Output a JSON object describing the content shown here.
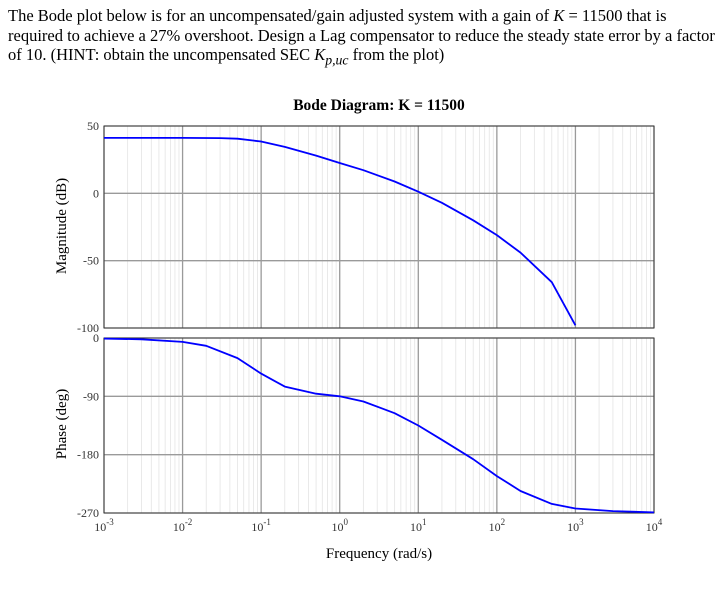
{
  "problem": {
    "text_before_k": "The Bode plot below is for an uncompensated/gain adjusted system with a gain of ",
    "k_symbol": "K",
    "text_after_k": " = 11500 that is required to achieve a 27% overshoot. Design a Lag compensator to reduce the steady state error by a factor of 10. (HINT: obtain the uncompensated SEC ",
    "kp_symbol": "K",
    "kp_subscript": "p,uc",
    "text_end": " from the plot)"
  },
  "chart_data": [
    {
      "type": "line",
      "title": "Bode Diagram: K = 11500",
      "xlabel": "Frequency (rad/s)",
      "ylabel": "Magnitude (dB)",
      "xscale": "log",
      "xlim": [
        0.001,
        10000
      ],
      "ylim": [
        -100,
        50
      ],
      "x_ticks": [
        0.001,
        0.01,
        0.1,
        1,
        10,
        100,
        1000,
        10000
      ],
      "x_tick_labels": [
        {
          "base": "10",
          "exp": "-3"
        },
        {
          "base": "10",
          "exp": "-2"
        },
        {
          "base": "10",
          "exp": "-1"
        },
        {
          "base": "10",
          "exp": "0"
        },
        {
          "base": "10",
          "exp": "1"
        },
        {
          "base": "10",
          "exp": "2"
        },
        {
          "base": "10",
          "exp": "3"
        },
        {
          "base": "10",
          "exp": "4"
        }
      ],
      "y_ticks": [
        50,
        0,
        -50,
        -100
      ],
      "y_tick_labels": [
        "50",
        "0",
        "-50",
        "-100"
      ],
      "grid": true,
      "color": "#0000ff",
      "series": [
        {
          "x": [
            0.001,
            0.01,
            0.03,
            0.05,
            0.1,
            0.2,
            0.5,
            1,
            2,
            5,
            10,
            20,
            50,
            100,
            200,
            500,
            1000
          ],
          "y": [
            41.2,
            41.2,
            41.0,
            40.6,
            38.5,
            34.5,
            28.0,
            22.5,
            17.2,
            8.8,
            1.2,
            -7.0,
            -20.0,
            -31.0,
            -44.0,
            -66.0,
            -98.0
          ]
        }
      ]
    },
    {
      "type": "line",
      "title": "",
      "xlabel": "Frequency (rad/s)",
      "ylabel": "Phase (deg)",
      "xscale": "log",
      "xlim": [
        0.001,
        10000
      ],
      "ylim": [
        -270,
        0
      ],
      "x_ticks": [
        0.001,
        0.01,
        0.1,
        1,
        10,
        100,
        1000,
        10000
      ],
      "y_ticks": [
        0,
        -90,
        -180,
        -270
      ],
      "y_tick_labels": [
        "0",
        "-90",
        "-180",
        "-270"
      ],
      "grid": true,
      "color": "#0000ff",
      "series": [
        {
          "x": [
            0.001,
            0.003,
            0.01,
            0.02,
            0.05,
            0.1,
            0.2,
            0.5,
            1,
            2,
            5,
            10,
            20,
            50,
            100,
            200,
            500,
            1000,
            3000,
            10000
          ],
          "y": [
            -1,
            -2,
            -6,
            -12,
            -31,
            -55,
            -75,
            -86,
            -90,
            -98,
            -116,
            -135,
            -157,
            -187,
            -213,
            -236,
            -256,
            -263,
            -267,
            -269
          ]
        }
      ]
    }
  ]
}
